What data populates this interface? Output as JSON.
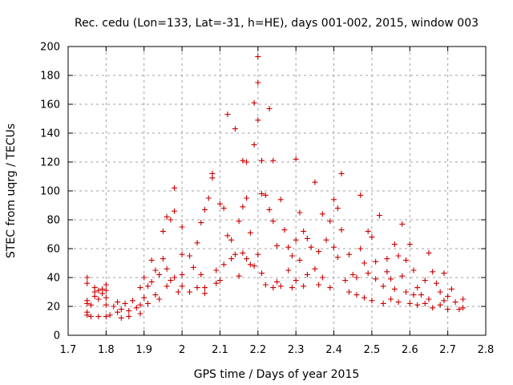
{
  "chart_data": {
    "type": "scatter",
    "title": "Rec. cedu (Lon=133, Lat=-31, h=HE), days 001-002, 2015, window 003",
    "xlabel": "GPS time / Days of year 2015",
    "ylabel": "STEC from uqrg / TECUs",
    "xlim": [
      1.7,
      2.8
    ],
    "ylim": [
      0,
      200
    ],
    "xticks": [
      "1.7",
      "1.8",
      "1.9",
      "2",
      "2.1",
      "2.2",
      "2.3",
      "2.4",
      "2.5",
      "2.6",
      "2.7",
      "2.8"
    ],
    "yticks": [
      "0",
      "20",
      "40",
      "60",
      "80",
      "100",
      "120",
      "140",
      "160",
      "180",
      "200"
    ],
    "grid": true,
    "marker": "plus",
    "color": "#cc0000",
    "points": [
      [
        1.75,
        40
      ],
      [
        1.75,
        36
      ],
      [
        1.75,
        24
      ],
      [
        1.75,
        22
      ],
      [
        1.75,
        16
      ],
      [
        1.75,
        14
      ],
      [
        1.76,
        13
      ],
      [
        1.76,
        21
      ],
      [
        1.77,
        33
      ],
      [
        1.77,
        30
      ],
      [
        1.77,
        27
      ],
      [
        1.78,
        25
      ],
      [
        1.78,
        31
      ],
      [
        1.78,
        13
      ],
      [
        1.79,
        29
      ],
      [
        1.79,
        32
      ],
      [
        1.8,
        26
      ],
      [
        1.8,
        31
      ],
      [
        1.8,
        35
      ],
      [
        1.8,
        21
      ],
      [
        1.8,
        13
      ],
      [
        1.81,
        14
      ],
      [
        1.82,
        20
      ],
      [
        1.83,
        16
      ],
      [
        1.83,
        23
      ],
      [
        1.84,
        12
      ],
      [
        1.84,
        18
      ],
      [
        1.85,
        22
      ],
      [
        1.86,
        17
      ],
      [
        1.86,
        13
      ],
      [
        1.87,
        24
      ],
      [
        1.88,
        19
      ],
      [
        1.89,
        15
      ],
      [
        1.89,
        21
      ],
      [
        1.89,
        33
      ],
      [
        1.9,
        26
      ],
      [
        1.9,
        40
      ],
      [
        1.91,
        22
      ],
      [
        1.91,
        34
      ],
      [
        1.92,
        37
      ],
      [
        1.92,
        52
      ],
      [
        1.93,
        45
      ],
      [
        1.93,
        28
      ],
      [
        1.94,
        42
      ],
      [
        1.94,
        25
      ],
      [
        1.95,
        72
      ],
      [
        1.95,
        53
      ],
      [
        1.96,
        82
      ],
      [
        1.96,
        46
      ],
      [
        1.96,
        34
      ],
      [
        1.97,
        80
      ],
      [
        1.97,
        38
      ],
      [
        1.98,
        102
      ],
      [
        1.98,
        86
      ],
      [
        1.98,
        40
      ],
      [
        1.99,
        30
      ],
      [
        2.0,
        75
      ],
      [
        2.0,
        42
      ],
      [
        2.0,
        34
      ],
      [
        2.0,
        56
      ],
      [
        2.02,
        55
      ],
      [
        2.02,
        30
      ],
      [
        2.03,
        47
      ],
      [
        2.04,
        64
      ],
      [
        2.04,
        33
      ],
      [
        2.05,
        78
      ],
      [
        2.05,
        42
      ],
      [
        2.06,
        29
      ],
      [
        2.06,
        87
      ],
      [
        2.06,
        33
      ],
      [
        2.07,
        95
      ],
      [
        2.08,
        112
      ],
      [
        2.08,
        109
      ],
      [
        2.09,
        36
      ],
      [
        2.09,
        45
      ],
      [
        2.1,
        91
      ],
      [
        2.1,
        38
      ],
      [
        2.11,
        88
      ],
      [
        2.11,
        49
      ],
      [
        2.12,
        153
      ],
      [
        2.12,
        69
      ],
      [
        2.13,
        53
      ],
      [
        2.13,
        66
      ],
      [
        2.14,
        143
      ],
      [
        2.14,
        56
      ],
      [
        2.15,
        79
      ],
      [
        2.15,
        41
      ],
      [
        2.16,
        89
      ],
      [
        2.16,
        121
      ],
      [
        2.16,
        57
      ],
      [
        2.17,
        120
      ],
      [
        2.17,
        95
      ],
      [
        2.17,
        53
      ],
      [
        2.18,
        71
      ],
      [
        2.18,
        49
      ],
      [
        2.19,
        161
      ],
      [
        2.19,
        132
      ],
      [
        2.19,
        48
      ],
      [
        2.2,
        193
      ],
      [
        2.2,
        175
      ],
      [
        2.2,
        149
      ],
      [
        2.2,
        56
      ],
      [
        2.21,
        121
      ],
      [
        2.21,
        98
      ],
      [
        2.21,
        43
      ],
      [
        2.22,
        97
      ],
      [
        2.22,
        35
      ],
      [
        2.23,
        157
      ],
      [
        2.23,
        87
      ],
      [
        2.24,
        121
      ],
      [
        2.24,
        79
      ],
      [
        2.24,
        33
      ],
      [
        2.25,
        62
      ],
      [
        2.25,
        37
      ],
      [
        2.26,
        94
      ],
      [
        2.26,
        34
      ],
      [
        2.27,
        73
      ],
      [
        2.28,
        61
      ],
      [
        2.28,
        45
      ],
      [
        2.29,
        55
      ],
      [
        2.29,
        33
      ],
      [
        2.3,
        122
      ],
      [
        2.3,
        66
      ],
      [
        2.3,
        38
      ],
      [
        2.31,
        85
      ],
      [
        2.31,
        52
      ],
      [
        2.32,
        72
      ],
      [
        2.32,
        34
      ],
      [
        2.33,
        67
      ],
      [
        2.33,
        42
      ],
      [
        2.34,
        61
      ],
      [
        2.35,
        106
      ],
      [
        2.35,
        46
      ],
      [
        2.36,
        58
      ],
      [
        2.36,
        35
      ],
      [
        2.37,
        84
      ],
      [
        2.37,
        40
      ],
      [
        2.38,
        66
      ],
      [
        2.39,
        79
      ],
      [
        2.39,
        33
      ],
      [
        2.4,
        94
      ],
      [
        2.4,
        61
      ],
      [
        2.41,
        88
      ],
      [
        2.41,
        54
      ],
      [
        2.42,
        112
      ],
      [
        2.42,
        73
      ],
      [
        2.43,
        38
      ],
      [
        2.44,
        56
      ],
      [
        2.44,
        30
      ],
      [
        2.45,
        42
      ],
      [
        2.46,
        40
      ],
      [
        2.46,
        28
      ],
      [
        2.47,
        97
      ],
      [
        2.47,
        60
      ],
      [
        2.48,
        50
      ],
      [
        2.48,
        26
      ],
      [
        2.49,
        72
      ],
      [
        2.49,
        43
      ],
      [
        2.5,
        68
      ],
      [
        2.5,
        24
      ],
      [
        2.51,
        51
      ],
      [
        2.51,
        39
      ],
      [
        2.52,
        83
      ],
      [
        2.53,
        34
      ],
      [
        2.53,
        22
      ],
      [
        2.54,
        53
      ],
      [
        2.54,
        44
      ],
      [
        2.55,
        39
      ],
      [
        2.55,
        25
      ],
      [
        2.56,
        63
      ],
      [
        2.56,
        32
      ],
      [
        2.57,
        55
      ],
      [
        2.57,
        23
      ],
      [
        2.58,
        77
      ],
      [
        2.58,
        41
      ],
      [
        2.59,
        52
      ],
      [
        2.59,
        30
      ],
      [
        2.6,
        63
      ],
      [
        2.6,
        22
      ],
      [
        2.61,
        45
      ],
      [
        2.61,
        28
      ],
      [
        2.62,
        33
      ],
      [
        2.62,
        21
      ],
      [
        2.63,
        28
      ],
      [
        2.64,
        38
      ],
      [
        2.64,
        22
      ],
      [
        2.65,
        57
      ],
      [
        2.65,
        25
      ],
      [
        2.66,
        44
      ],
      [
        2.66,
        19
      ],
      [
        2.67,
        36
      ],
      [
        2.68,
        30
      ],
      [
        2.68,
        21
      ],
      [
        2.69,
        43
      ],
      [
        2.69,
        24
      ],
      [
        2.7,
        27
      ],
      [
        2.7,
        18
      ],
      [
        2.71,
        32
      ],
      [
        2.72,
        23
      ],
      [
        2.73,
        18
      ],
      [
        2.74,
        25
      ],
      [
        2.74,
        19
      ]
    ]
  }
}
